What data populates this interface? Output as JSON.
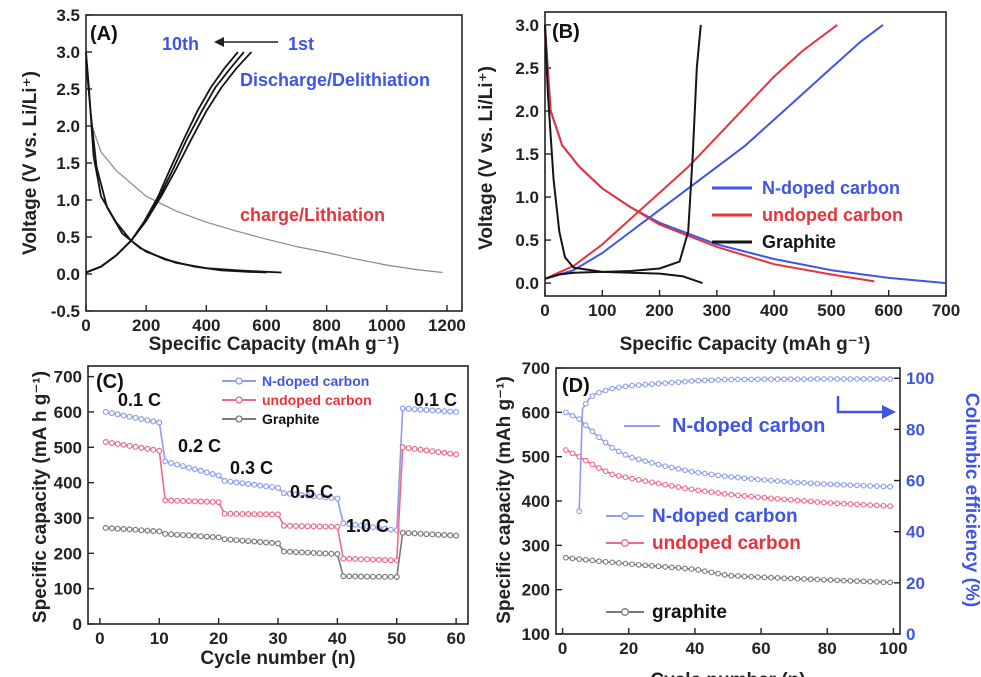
{
  "colors": {
    "blue": "#3f55e6",
    "red": "#e8323c",
    "black": "#151515",
    "gray": "#8a8a8a",
    "lblue": "#8f9cf0",
    "pink": "#f06a86",
    "grey2": "#7a7a7a"
  },
  "chart_data": [
    {
      "id": "A",
      "type": "line",
      "panel_label": "(A)",
      "xlabel": "Specific Capacity (mAh g⁻¹)",
      "ylabel": "Voltage (V vs. Li/Li⁺)",
      "xlim": [
        0,
        1250
      ],
      "ylim": [
        -0.5,
        3.5
      ],
      "xticks": [
        "0",
        "200",
        "400",
        "600",
        "800",
        "1000",
        "1200"
      ],
      "yticks": [
        "-0.5",
        "0.0",
        "0.5",
        "1.0",
        "1.5",
        "2.0",
        "2.5",
        "3.0",
        "3.5"
      ],
      "annotations": [
        "10th",
        "1st",
        "Discharge/Delithiation",
        "charge/Lithiation"
      ],
      "series": [
        {
          "color": "gray",
          "points": [
            [
              0,
              3.0
            ],
            [
              20,
              2.0
            ],
            [
              50,
              1.65
            ],
            [
              100,
              1.4
            ],
            [
              200,
              1.05
            ],
            [
              300,
              0.85
            ],
            [
              400,
              0.7
            ],
            [
              500,
              0.58
            ],
            [
              600,
              0.47
            ],
            [
              700,
              0.37
            ],
            [
              800,
              0.29
            ],
            [
              900,
              0.2
            ],
            [
              1000,
              0.12
            ],
            [
              1100,
              0.06
            ],
            [
              1185,
              0.02
            ]
          ]
        },
        {
          "color": "black",
          "points": [
            [
              0,
              3.0
            ],
            [
              10,
              2.5
            ],
            [
              25,
              1.6
            ],
            [
              50,
              1.05
            ],
            [
              100,
              0.7
            ],
            [
              150,
              0.45
            ],
            [
              200,
              0.3
            ],
            [
              300,
              0.15
            ],
            [
              400,
              0.08
            ],
            [
              500,
              0.05
            ],
            [
              600,
              0.03
            ],
            [
              650,
              0.02
            ]
          ]
        },
        {
          "color": "black",
          "points": [
            [
              0,
              2.9
            ],
            [
              15,
              2.2
            ],
            [
              35,
              1.45
            ],
            [
              70,
              0.9
            ],
            [
              120,
              0.55
            ],
            [
              180,
              0.35
            ],
            [
              260,
              0.2
            ],
            [
              360,
              0.1
            ],
            [
              450,
              0.05
            ],
            [
              540,
              0.03
            ],
            [
              600,
              0.02
            ]
          ]
        },
        {
          "color": "black",
          "points": [
            [
              0,
              0.02
            ],
            [
              50,
              0.1
            ],
            [
              100,
              0.25
            ],
            [
              150,
              0.45
            ],
            [
              200,
              0.72
            ],
            [
              250,
              1.05
            ],
            [
              300,
              1.42
            ],
            [
              350,
              1.82
            ],
            [
              400,
              2.2
            ],
            [
              450,
              2.52
            ],
            [
              500,
              2.78
            ],
            [
              550,
              3.0
            ]
          ]
        },
        {
          "color": "black",
          "points": [
            [
              0,
              0.02
            ],
            [
              50,
              0.1
            ],
            [
              100,
              0.25
            ],
            [
              150,
              0.45
            ],
            [
              200,
              0.72
            ],
            [
              245,
              1.05
            ],
            [
              290,
              1.42
            ],
            [
              335,
              1.82
            ],
            [
              385,
              2.2
            ],
            [
              430,
              2.52
            ],
            [
              480,
              2.78
            ],
            [
              525,
              3.0
            ]
          ]
        },
        {
          "color": "black",
          "points": [
            [
              0,
              0.02
            ],
            [
              50,
              0.1
            ],
            [
              100,
              0.25
            ],
            [
              150,
              0.45
            ],
            [
              195,
              0.72
            ],
            [
              240,
              1.05
            ],
            [
              280,
              1.42
            ],
            [
              325,
              1.82
            ],
            [
              370,
              2.2
            ],
            [
              415,
              2.52
            ],
            [
              460,
              2.78
            ],
            [
              505,
              3.0
            ]
          ]
        }
      ]
    },
    {
      "id": "B",
      "type": "line",
      "panel_label": "(B)",
      "xlabel": "Specific Capacity (mAh g⁻¹)",
      "ylabel": "Voltage (V vs. Li/Li⁺)",
      "xlim": [
        0,
        700
      ],
      "ylim": [
        -0.15,
        3.15
      ],
      "xticks": [
        "0",
        "100",
        "200",
        "300",
        "400",
        "500",
        "600",
        "700"
      ],
      "yticks": [
        "0.0",
        "0.5",
        "1.0",
        "1.5",
        "2.0",
        "2.5",
        "3.0"
      ],
      "legend": [
        "N-doped carbon",
        "undoped carbon",
        "Graphite"
      ],
      "series": [
        {
          "name": "N-doped carbon",
          "color": "blue",
          "points": [
            [
              0,
              3.0
            ],
            [
              10,
              2.0
            ],
            [
              30,
              1.6
            ],
            [
              60,
              1.35
            ],
            [
              100,
              1.1
            ],
            [
              150,
              0.88
            ],
            [
              200,
              0.7
            ],
            [
              300,
              0.45
            ],
            [
              400,
              0.28
            ],
            [
              500,
              0.15
            ],
            [
              600,
              0.06
            ],
            [
              700,
              0.0
            ]
          ]
        },
        {
          "name": "N-doped carbon",
          "color": "blue",
          "points": [
            [
              0,
              0.05
            ],
            [
              50,
              0.15
            ],
            [
              100,
              0.35
            ],
            [
              150,
              0.6
            ],
            [
              200,
              0.85
            ],
            [
              250,
              1.1
            ],
            [
              300,
              1.35
            ],
            [
              350,
              1.6
            ],
            [
              400,
              1.9
            ],
            [
              450,
              2.2
            ],
            [
              500,
              2.5
            ],
            [
              550,
              2.8
            ],
            [
              590,
              3.0
            ]
          ]
        },
        {
          "name": "undoped carbon",
          "color": "red",
          "points": [
            [
              0,
              2.9
            ],
            [
              10,
              2.0
            ],
            [
              30,
              1.6
            ],
            [
              60,
              1.35
            ],
            [
              100,
              1.1
            ],
            [
              150,
              0.88
            ],
            [
              200,
              0.68
            ],
            [
              300,
              0.42
            ],
            [
              400,
              0.22
            ],
            [
              500,
              0.1
            ],
            [
              575,
              0.02
            ]
          ]
        },
        {
          "name": "undoped carbon",
          "color": "red",
          "points": [
            [
              0,
              0.05
            ],
            [
              50,
              0.2
            ],
            [
              100,
              0.45
            ],
            [
              150,
              0.75
            ],
            [
              200,
              1.05
            ],
            [
              250,
              1.35
            ],
            [
              300,
              1.7
            ],
            [
              350,
              2.05
            ],
            [
              400,
              2.4
            ],
            [
              450,
              2.7
            ],
            [
              510,
              3.0
            ]
          ]
        },
        {
          "name": "Graphite",
          "color": "black",
          "points": [
            [
              0,
              3.0
            ],
            [
              5,
              2.2
            ],
            [
              15,
              1.2
            ],
            [
              25,
              0.6
            ],
            [
              35,
              0.3
            ],
            [
              50,
              0.18
            ],
            [
              100,
              0.13
            ],
            [
              150,
              0.12
            ],
            [
              200,
              0.11
            ],
            [
              240,
              0.08
            ],
            [
              275,
              0.0
            ]
          ]
        },
        {
          "name": "Graphite",
          "color": "black",
          "points": [
            [
              0,
              0.05
            ],
            [
              25,
              0.1
            ],
            [
              50,
              0.12
            ],
            [
              100,
              0.13
            ],
            [
              150,
              0.14
            ],
            [
              200,
              0.17
            ],
            [
              235,
              0.25
            ],
            [
              250,
              0.6
            ],
            [
              258,
              1.5
            ],
            [
              265,
              2.5
            ],
            [
              272,
              3.0
            ]
          ]
        }
      ]
    },
    {
      "id": "C",
      "type": "scatter",
      "panel_label": "(C)",
      "xlabel": "Cycle number (n)",
      "ylabel": "Specific capacity (mA h g⁻¹)",
      "xlim": [
        -2,
        62
      ],
      "ylim": [
        0,
        730
      ],
      "xticks": [
        "0",
        "10",
        "20",
        "30",
        "40",
        "50",
        "60"
      ],
      "yticks": [
        "0",
        "100",
        "200",
        "300",
        "400",
        "500",
        "600",
        "700"
      ],
      "legend": [
        "N-doped carbon",
        "undoped carbon",
        "Graphite"
      ],
      "rate_labels": [
        "0.1 C",
        "0.2 C",
        "0.3 C",
        "0.5 C",
        "1.0 C",
        "0.1 C"
      ],
      "series": [
        {
          "name": "N-doped carbon",
          "color": "lblue",
          "segments": [
            [
              1,
              10,
              600,
              570
            ],
            [
              11,
              20,
              460,
              420
            ],
            [
              21,
              30,
              405,
              385
            ],
            [
              31,
              40,
              370,
              355
            ],
            [
              41,
              50,
              285,
              265
            ],
            [
              51,
              60,
              610,
              600
            ]
          ]
        },
        {
          "name": "undoped carbon",
          "color": "pink",
          "segments": [
            [
              1,
              10,
              515,
              490
            ],
            [
              11,
              20,
              350,
              345
            ],
            [
              21,
              30,
              312,
              310
            ],
            [
              31,
              40,
              278,
              275
            ],
            [
              41,
              50,
              185,
              180
            ],
            [
              51,
              60,
              500,
              480
            ]
          ]
        },
        {
          "name": "Graphite",
          "color": "grey2",
          "segments": [
            [
              1,
              10,
              272,
              262
            ],
            [
              11,
              20,
              255,
              245
            ],
            [
              21,
              30,
              240,
              228
            ],
            [
              31,
              40,
              205,
              198
            ],
            [
              41,
              50,
              135,
              133
            ],
            [
              51,
              60,
              258,
              250
            ]
          ]
        }
      ]
    },
    {
      "id": "D",
      "type": "scatter",
      "panel_label": "(D)",
      "xlabel": "Cycle number (n)",
      "ylabel": "Specific capacity (mAh g⁻¹)",
      "y2label": "Columbic efficiency (%)",
      "xlim": [
        -2,
        102
      ],
      "ylim": [
        100,
        700
      ],
      "y2lim": [
        0,
        104
      ],
      "xticks": [
        "0",
        "20",
        "40",
        "60",
        "80",
        "100"
      ],
      "yticks": [
        "100",
        "200",
        "300",
        "400",
        "500",
        "600",
        "700"
      ],
      "y2ticks": [
        "0",
        "20",
        "40",
        "60",
        "80",
        "100"
      ],
      "annotations": [
        "N-doped carbon"
      ],
      "legend": [
        "N-doped carbon",
        "undoped carbon",
        "graphite"
      ],
      "series": [
        {
          "name": "N-doped carbon",
          "color": "lblue",
          "points": [
            [
              1,
              600
            ],
            [
              5,
              585
            ],
            [
              10,
              550
            ],
            [
              15,
              520
            ],
            [
              20,
              500
            ],
            [
              30,
              480
            ],
            [
              40,
              465
            ],
            [
              50,
              455
            ],
            [
              60,
              448
            ],
            [
              70,
              442
            ],
            [
              80,
              438
            ],
            [
              90,
              435
            ],
            [
              100,
              432
            ]
          ]
        },
        {
          "name": "undoped carbon",
          "color": "pink",
          "points": [
            [
              1,
              515
            ],
            [
              5,
              500
            ],
            [
              10,
              478
            ],
            [
              15,
              460
            ],
            [
              20,
              452
            ],
            [
              30,
              438
            ],
            [
              40,
              425
            ],
            [
              50,
              415
            ],
            [
              60,
              408
            ],
            [
              70,
              402
            ],
            [
              80,
              396
            ],
            [
              90,
              392
            ],
            [
              100,
              388
            ]
          ]
        },
        {
          "name": "graphite",
          "color": "grey2",
          "points": [
            [
              1,
              272
            ],
            [
              10,
              265
            ],
            [
              20,
              258
            ],
            [
              30,
              252
            ],
            [
              40,
              246
            ],
            [
              50,
              232
            ],
            [
              60,
              228
            ],
            [
              70,
              225
            ],
            [
              80,
              222
            ],
            [
              90,
              219
            ],
            [
              100,
              216
            ]
          ]
        },
        {
          "name": "N-doped carbon",
          "color": "lblue",
          "axis": "y2",
          "points": [
            [
              5,
              48
            ],
            [
              6,
              88
            ],
            [
              8,
              92
            ],
            [
              10,
              94
            ],
            [
              15,
              96
            ],
            [
              20,
              97
            ],
            [
              30,
              98
            ],
            [
              40,
              99
            ],
            [
              50,
              99.5
            ],
            [
              60,
              99.6
            ],
            [
              80,
              99.7
            ],
            [
              100,
              99.7
            ]
          ]
        }
      ]
    }
  ]
}
